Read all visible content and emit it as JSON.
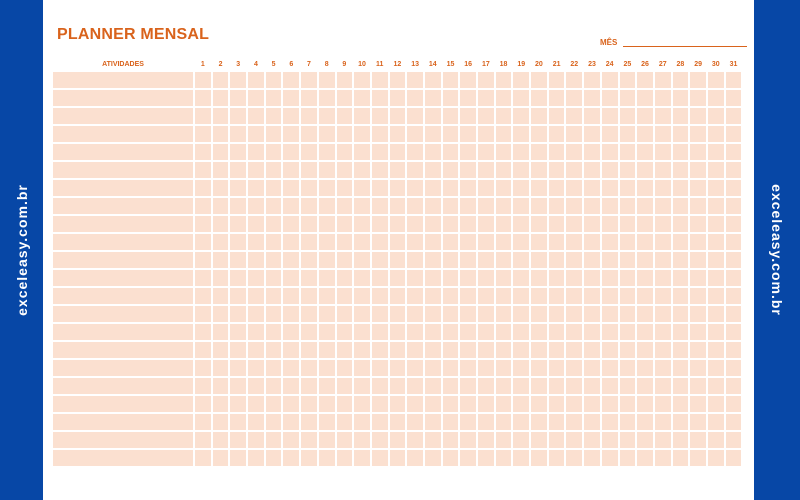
{
  "title": "PLANNER MENSAL",
  "month_label": "MÊS",
  "month_value": "",
  "activities_header": "ATIVIDADES",
  "days": [
    "1",
    "2",
    "3",
    "4",
    "5",
    "6",
    "7",
    "8",
    "9",
    "10",
    "11",
    "12",
    "13",
    "14",
    "15",
    "16",
    "17",
    "18",
    "19",
    "20",
    "21",
    "22",
    "23",
    "24",
    "25",
    "26",
    "27",
    "28",
    "29",
    "30",
    "31"
  ],
  "row_count": 22,
  "watermark": "exceleasy.com.br",
  "colors": {
    "accent": "#d9631c",
    "side_bar": "#0747a6",
    "cell_fill": "#fbe0d0"
  }
}
